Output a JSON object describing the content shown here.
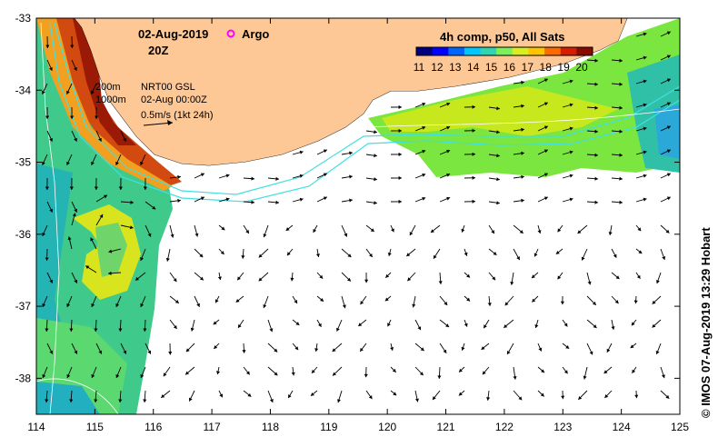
{
  "header": {
    "date": "02-Aug-2019",
    "time": "20Z",
    "argo_label": "Argo"
  },
  "legend": {
    "title": "4h comp, p50, All Sats",
    "ticks": [
      "11",
      "12",
      "13",
      "14",
      "15",
      "16",
      "17",
      "18",
      "19",
      "20"
    ],
    "colors": [
      "#00007f",
      "#0000ff",
      "#0066ff",
      "#00c8ff",
      "#2fd5b0",
      "#7cf05a",
      "#d8ee1e",
      "#ffc400",
      "#ff6a00",
      "#d81c00",
      "#8a0a00"
    ]
  },
  "annotations": {
    "contour_200": "200m",
    "contour_1000": "1000m",
    "source": "NRT00 GSL",
    "source_time": "02-Aug 00:00Z",
    "scale": "0.5m/s (1kt 24h)"
  },
  "axes": {
    "x_ticks": [
      "114",
      "115",
      "116",
      "117",
      "118",
      "119",
      "120",
      "121",
      "122",
      "123",
      "124",
      "125"
    ],
    "y_ticks": [
      "-33",
      "-34",
      "-35",
      "-36",
      "-37",
      "-38"
    ],
    "x_range": [
      114,
      125
    ],
    "y_range": [
      -38.5,
      -33
    ]
  },
  "credit": "© IMOS 07-Aug-2019 13:29 Hobart",
  "colors": {
    "land": "#fdc896",
    "contour": "#40e0e0",
    "frame": "#000000"
  }
}
